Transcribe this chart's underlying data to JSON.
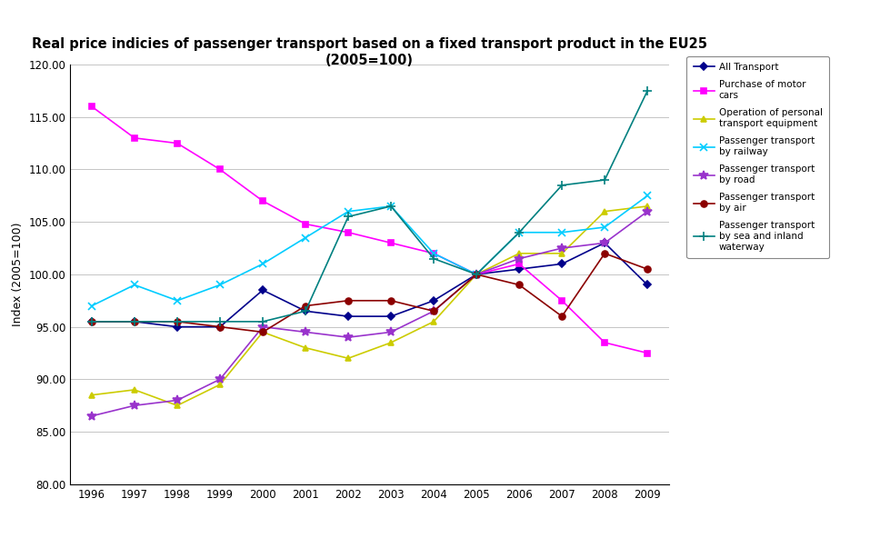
{
  "title": "Real price indicies of passenger transport based on a fixed transport product in the EU25\n(2005=100)",
  "ylabel": "Index (2005=100)",
  "years": [
    1996,
    1997,
    1998,
    1999,
    2000,
    2001,
    2002,
    2003,
    2004,
    2005,
    2006,
    2007,
    2008,
    2009
  ],
  "series": [
    {
      "label": "All Transport",
      "color": "#00008B",
      "marker": "D",
      "markersize": 4,
      "linewidth": 1.2,
      "values": [
        95.5,
        95.5,
        95.0,
        95.0,
        98.5,
        96.5,
        96.0,
        96.0,
        97.5,
        100.0,
        100.5,
        101.0,
        103.0,
        99.0
      ]
    },
    {
      "label": "Purchase of motor\ncars",
      "color": "#FF00FF",
      "marker": "s",
      "markersize": 5,
      "linewidth": 1.2,
      "values": [
        116.0,
        113.0,
        112.5,
        110.0,
        107.0,
        104.8,
        104.0,
        103.0,
        102.0,
        100.0,
        101.0,
        97.5,
        93.5,
        92.5
      ]
    },
    {
      "label": "Operation of personal\ntransport equipment",
      "color": "#CCCC00",
      "marker": "^",
      "markersize": 5,
      "linewidth": 1.2,
      "values": [
        88.5,
        89.0,
        87.5,
        89.5,
        94.5,
        93.0,
        92.0,
        93.5,
        95.5,
        100.0,
        102.0,
        102.0,
        106.0,
        106.5
      ]
    },
    {
      "label": "Passenger transport\nby railway",
      "color": "#00CCFF",
      "marker": "x",
      "markersize": 6,
      "linewidth": 1.2,
      "values": [
        97.0,
        99.0,
        97.5,
        99.0,
        101.0,
        103.5,
        106.0,
        106.5,
        102.0,
        100.0,
        104.0,
        104.0,
        104.5,
        107.5
      ]
    },
    {
      "label": "Passenger transport\nby road",
      "color": "#9933CC",
      "marker": "*",
      "markersize": 7,
      "linewidth": 1.2,
      "values": [
        86.5,
        87.5,
        88.0,
        90.0,
        95.0,
        94.5,
        94.0,
        94.5,
        96.5,
        100.0,
        101.5,
        102.5,
        103.0,
        106.0
      ]
    },
    {
      "label": "Passenger transport\nby air",
      "color": "#8B0000",
      "marker": "o",
      "markersize": 5,
      "linewidth": 1.2,
      "values": [
        95.5,
        95.5,
        95.5,
        95.0,
        94.5,
        97.0,
        97.5,
        97.5,
        96.5,
        100.0,
        99.0,
        96.0,
        102.0,
        100.5
      ]
    },
    {
      "label": "Passenger transport\nby sea and inland\nwaterway",
      "color": "#008080",
      "marker": "+",
      "markersize": 7,
      "linewidth": 1.2,
      "values": [
        95.5,
        95.5,
        95.5,
        95.5,
        95.5,
        96.5,
        105.5,
        106.5,
        101.5,
        100.0,
        104.0,
        108.5,
        109.0,
        117.5
      ]
    }
  ],
  "ylim": [
    80.0,
    120.0
  ],
  "yticks": [
    80.0,
    85.0,
    90.0,
    95.0,
    100.0,
    105.0,
    110.0,
    115.0,
    120.0
  ],
  "background_color": "#FFFFFF",
  "grid_color": "#BBBBBB",
  "figsize": [
    9.68,
    5.92
  ],
  "dpi": 100
}
